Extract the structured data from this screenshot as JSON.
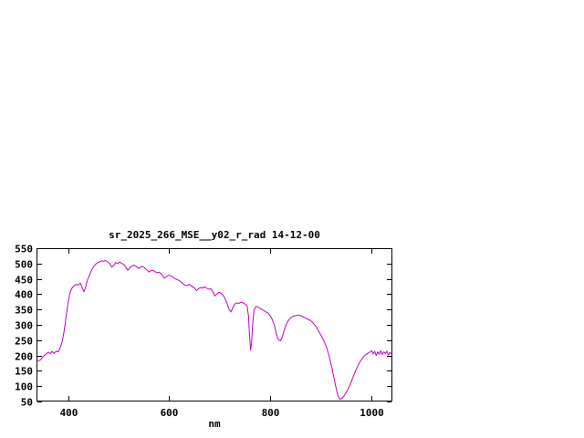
{
  "page": {
    "background_color": "#ffffff",
    "text_color": "#000000"
  },
  "chart_data": {
    "type": "line",
    "title": "sr_2025_266_MSE__y02_r_rad 14-12-00",
    "xlabel": "nm",
    "ylabel": "",
    "xlim": [
      337,
      1042
    ],
    "ylim": [
      50,
      550
    ],
    "x_ticks": [
      400,
      600,
      800,
      1000
    ],
    "y_ticks": [
      50,
      100,
      150,
      200,
      250,
      300,
      350,
      400,
      450,
      500,
      550
    ],
    "grid": false,
    "legend": "none",
    "border_color": "#000000",
    "line_color": "#c000c0",
    "series": [
      {
        "points": [
          [
            340,
            182
          ],
          [
            345,
            186
          ],
          [
            350,
            196
          ],
          [
            355,
            204
          ],
          [
            360,
            210
          ],
          [
            364,
            206
          ],
          [
            368,
            213
          ],
          [
            372,
            207
          ],
          [
            376,
            214
          ],
          [
            380,
            212
          ],
          [
            384,
            226
          ],
          [
            388,
            246
          ],
          [
            392,
            282
          ],
          [
            396,
            330
          ],
          [
            400,
            378
          ],
          [
            404,
            408
          ],
          [
            408,
            422
          ],
          [
            412,
            428
          ],
          [
            416,
            432
          ],
          [
            420,
            430
          ],
          [
            424,
            436
          ],
          [
            428,
            420
          ],
          [
            431,
            408
          ],
          [
            434,
            422
          ],
          [
            438,
            446
          ],
          [
            442,
            462
          ],
          [
            446,
            478
          ],
          [
            450,
            490
          ],
          [
            454,
            497
          ],
          [
            458,
            503
          ],
          [
            462,
            505
          ],
          [
            466,
            509
          ],
          [
            470,
            507
          ],
          [
            474,
            510
          ],
          [
            478,
            505
          ],
          [
            482,
            500
          ],
          [
            486,
            488
          ],
          [
            490,
            494
          ],
          [
            494,
            503
          ],
          [
            498,
            500
          ],
          [
            502,
            505
          ],
          [
            506,
            500
          ],
          [
            510,
            497
          ],
          [
            514,
            488
          ],
          [
            518,
            478
          ],
          [
            522,
            486
          ],
          [
            526,
            492
          ],
          [
            530,
            495
          ],
          [
            535,
            490
          ],
          [
            540,
            484
          ],
          [
            545,
            491
          ],
          [
            550,
            488
          ],
          [
            555,
            480
          ],
          [
            560,
            472
          ],
          [
            565,
            478
          ],
          [
            570,
            476
          ],
          [
            575,
            470
          ],
          [
            580,
            472
          ],
          [
            585,
            465
          ],
          [
            590,
            452
          ],
          [
            595,
            458
          ],
          [
            600,
            462
          ],
          [
            605,
            458
          ],
          [
            610,
            452
          ],
          [
            615,
            448
          ],
          [
            620,
            444
          ],
          [
            625,
            438
          ],
          [
            630,
            430
          ],
          [
            635,
            428
          ],
          [
            640,
            432
          ],
          [
            645,
            426
          ],
          [
            650,
            420
          ],
          [
            654,
            412
          ],
          [
            658,
            418
          ],
          [
            662,
            422
          ],
          [
            666,
            420
          ],
          [
            670,
            424
          ],
          [
            674,
            420
          ],
          [
            678,
            416
          ],
          [
            682,
            418
          ],
          [
            686,
            410
          ],
          [
            690,
            394
          ],
          [
            694,
            400
          ],
          [
            698,
            406
          ],
          [
            702,
            404
          ],
          [
            706,
            398
          ],
          [
            710,
            388
          ],
          [
            714,
            372
          ],
          [
            718,
            352
          ],
          [
            722,
            342
          ],
          [
            726,
            356
          ],
          [
            730,
            368
          ],
          [
            734,
            372
          ],
          [
            738,
            370
          ],
          [
            742,
            374
          ],
          [
            746,
            372
          ],
          [
            750,
            368
          ],
          [
            754,
            362
          ],
          [
            757,
            330
          ],
          [
            759,
            270
          ],
          [
            761,
            218
          ],
          [
            763,
            240
          ],
          [
            765,
            300
          ],
          [
            768,
            348
          ],
          [
            772,
            360
          ],
          [
            776,
            358
          ],
          [
            780,
            354
          ],
          [
            784,
            350
          ],
          [
            788,
            346
          ],
          [
            792,
            342
          ],
          [
            796,
            338
          ],
          [
            800,
            330
          ],
          [
            804,
            318
          ],
          [
            808,
            300
          ],
          [
            812,
            272
          ],
          [
            816,
            252
          ],
          [
            820,
            248
          ],
          [
            824,
            260
          ],
          [
            828,
            284
          ],
          [
            832,
            302
          ],
          [
            836,
            314
          ],
          [
            840,
            322
          ],
          [
            845,
            328
          ],
          [
            850,
            330
          ],
          [
            855,
            332
          ],
          [
            860,
            330
          ],
          [
            865,
            326
          ],
          [
            870,
            322
          ],
          [
            875,
            318
          ],
          [
            880,
            314
          ],
          [
            885,
            306
          ],
          [
            890,
            296
          ],
          [
            895,
            282
          ],
          [
            900,
            268
          ],
          [
            905,
            252
          ],
          [
            910,
            234
          ],
          [
            914,
            214
          ],
          [
            918,
            190
          ],
          [
            922,
            162
          ],
          [
            926,
            130
          ],
          [
            930,
            98
          ],
          [
            934,
            70
          ],
          [
            938,
            57
          ],
          [
            942,
            60
          ],
          [
            946,
            68
          ],
          [
            950,
            78
          ],
          [
            954,
            90
          ],
          [
            958,
            104
          ],
          [
            962,
            120
          ],
          [
            966,
            138
          ],
          [
            970,
            154
          ],
          [
            974,
            168
          ],
          [
            978,
            180
          ],
          [
            982,
            190
          ],
          [
            986,
            198
          ],
          [
            990,
            204
          ],
          [
            994,
            208
          ],
          [
            998,
            212
          ],
          [
            1001,
            216
          ],
          [
            1004,
            205
          ],
          [
            1007,
            214
          ],
          [
            1010,
            200
          ],
          [
            1013,
            212
          ],
          [
            1016,
            204
          ],
          [
            1019,
            216
          ],
          [
            1022,
            203
          ],
          [
            1025,
            212
          ],
          [
            1028,
            206
          ],
          [
            1031,
            214
          ],
          [
            1034,
            202
          ],
          [
            1037,
            210
          ],
          [
            1040,
            206
          ],
          [
            1041,
            207
          ]
        ]
      }
    ]
  }
}
